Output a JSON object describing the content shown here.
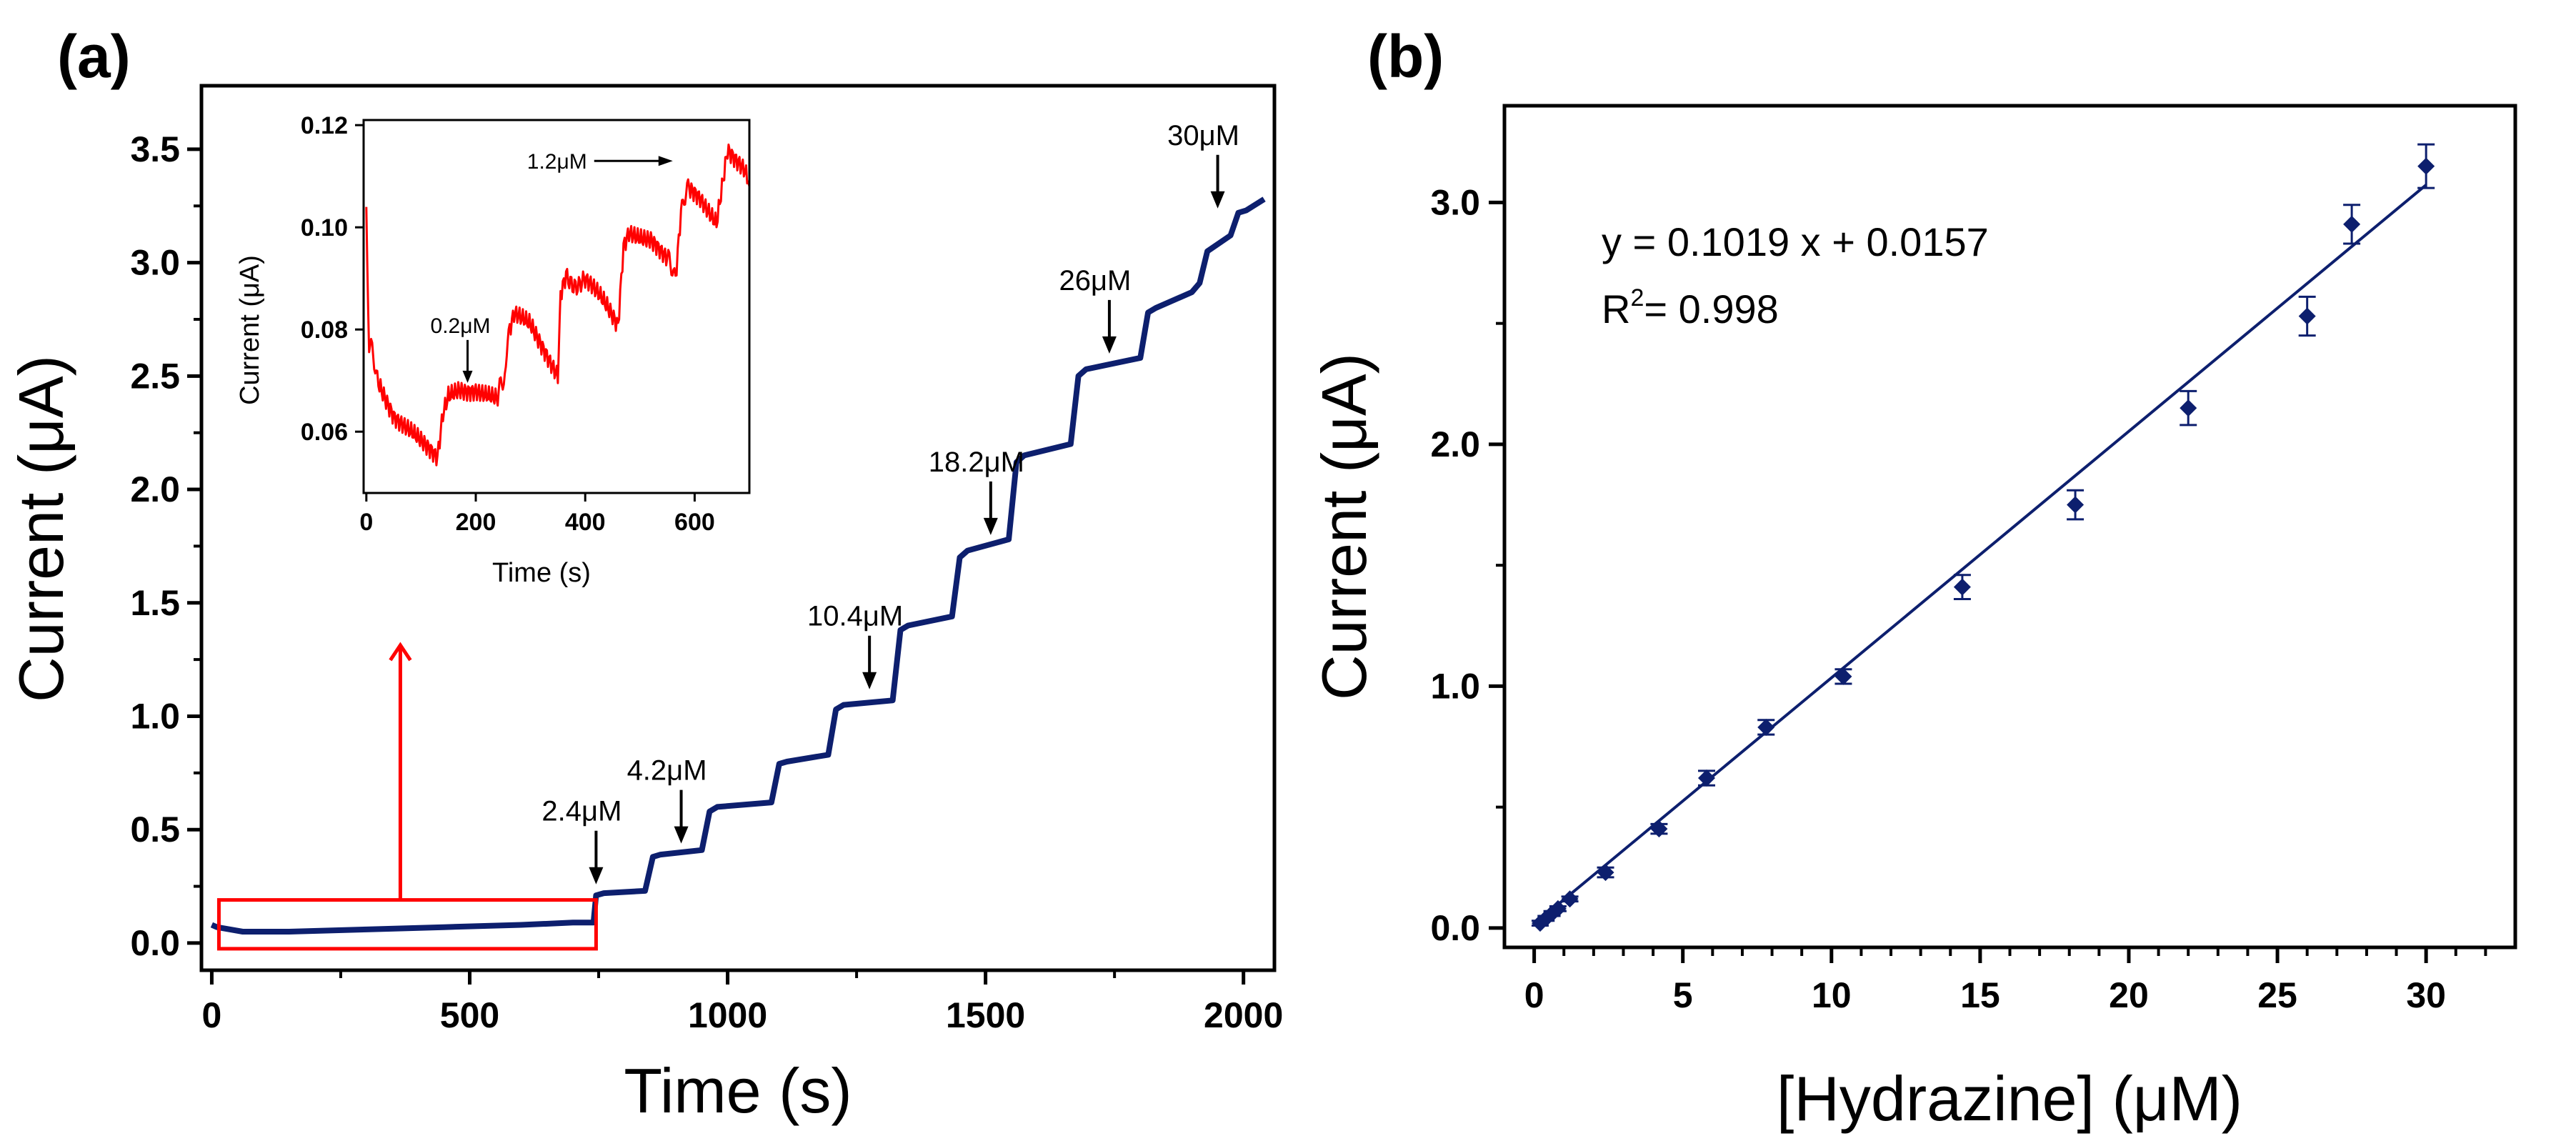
{
  "chart_data": [
    {
      "panel": "(a)",
      "type": "line",
      "xlabel": "Time (s)",
      "ylabel": "Current (μA)",
      "xlim": [
        -20,
        2060
      ],
      "ylim": [
        -0.12,
        3.78
      ],
      "xticks": [
        0,
        500,
        1000,
        1500,
        2000
      ],
      "xtick_labels": [
        "0",
        "500",
        "1000",
        "1500",
        "2000"
      ],
      "yticks": [
        0.0,
        0.5,
        1.0,
        1.5,
        2.0,
        2.5,
        3.0,
        3.5
      ],
      "ytick_labels": [
        "0.0",
        "0.5",
        "1.0",
        "1.5",
        "2.0",
        "2.5",
        "3.0",
        "3.5"
      ],
      "series": [
        {
          "color": "#0d1f6e",
          "x": [
            0,
            10,
            60,
            150,
            300,
            450,
            600,
            700,
            740,
            745,
            760,
            840,
            855,
            870,
            950,
            965,
            980,
            1085,
            1100,
            1115,
            1195,
            1210,
            1225,
            1320,
            1335,
            1350,
            1435,
            1450,
            1465,
            1545,
            1560,
            1575,
            1665,
            1680,
            1695,
            1800,
            1815,
            1830,
            1900,
            1915,
            1930,
            1975,
            1990,
            2005,
            2040
          ],
          "y": [
            0.08,
            0.07,
            0.05,
            0.05,
            0.06,
            0.07,
            0.08,
            0.09,
            0.09,
            0.21,
            0.22,
            0.23,
            0.38,
            0.39,
            0.41,
            0.58,
            0.6,
            0.62,
            0.79,
            0.8,
            0.83,
            1.03,
            1.05,
            1.07,
            1.38,
            1.4,
            1.44,
            1.7,
            1.73,
            1.78,
            2.12,
            2.15,
            2.2,
            2.5,
            2.53,
            2.58,
            2.78,
            2.8,
            2.87,
            2.91,
            3.05,
            3.12,
            3.22,
            3.23,
            3.28
          ]
        }
      ],
      "annotations": [
        {
          "text": "2.4μM",
          "x": 745,
          "y": 0.24
        },
        {
          "text": "4.2μM",
          "x": 910,
          "y": 0.42
        },
        {
          "text": "10.4μM",
          "x": 1275,
          "y": 1.1
        },
        {
          "text": "18.2μM",
          "x": 1510,
          "y": 1.78
        },
        {
          "text": "26μM",
          "x": 1740,
          "y": 2.58
        },
        {
          "text": "30μM",
          "x": 1950,
          "y": 3.22
        }
      ],
      "highlight_box": {
        "x0": 0,
        "x1": 745,
        "y0": 0.0,
        "y1": 0.19,
        "color": "#ff0000"
      },
      "inset": {
        "type": "line",
        "xlabel": "Time (s)",
        "ylabel": "Current (μA)",
        "xlim": [
          -5,
          700
        ],
        "ylim": [
          0.048,
          0.121
        ],
        "xticks": [
          0,
          200,
          400,
          600
        ],
        "xtick_labels": [
          "0",
          "200",
          "400",
          "600"
        ],
        "yticks": [
          0.06,
          0.08,
          0.1,
          0.12
        ],
        "ytick_labels": [
          "0.06",
          "0.08",
          "0.10",
          "0.12"
        ],
        "series": [
          {
            "color": "#ff0000",
            "x": [
              0,
              5,
              20,
              50,
              80,
              110,
              130,
              140,
              150,
              170,
              200,
              240,
              255,
              260,
              270,
              300,
              330,
              350,
              355,
              365,
              400,
              440,
              460,
              470,
              480,
              520,
              550,
              565,
              575,
              590,
              610,
              640,
              660,
              690,
              700
            ],
            "y": [
              0.104,
              0.077,
              0.071,
              0.064,
              0.06,
              0.056,
              0.054,
              0.063,
              0.067,
              0.069,
              0.069,
              0.066,
              0.072,
              0.078,
              0.082,
              0.081,
              0.076,
              0.072,
              0.086,
              0.09,
              0.089,
              0.084,
              0.081,
              0.097,
              0.1,
              0.098,
              0.093,
              0.091,
              0.104,
              0.107,
              0.106,
              0.102,
              0.116,
              0.111,
              0.108
            ]
          }
        ],
        "annotations": [
          {
            "text": "0.2μM",
            "x": 185,
            "y": 0.069
          },
          {
            "text": "1.2μM",
            "x": 560,
            "y": 0.113
          }
        ]
      }
    },
    {
      "panel": "(b)",
      "type": "scatter",
      "xlabel": "[Hydrazine] (μM)",
      "ylabel": "Current (μA)",
      "xlim": [
        -1,
        33
      ],
      "ylim": [
        -0.08,
        3.4
      ],
      "xticks": [
        0,
        5,
        10,
        15,
        20,
        25,
        30
      ],
      "xtick_labels": [
        "0",
        "5",
        "10",
        "15",
        "20",
        "25",
        "30"
      ],
      "yticks": [
        0.0,
        1.0,
        2.0,
        3.0
      ],
      "ytick_labels": [
        "0.0",
        "1.0",
        "2.0",
        "3.0"
      ],
      "series": [
        {
          "color": "#0d1f6e",
          "marker": "diamond",
          "x": [
            0.2,
            0.4,
            0.6,
            0.8,
            1.2,
            2.4,
            4.2,
            5.8,
            7.8,
            10.4,
            14.4,
            18.2,
            22.0,
            26.0,
            27.5,
            30.0
          ],
          "y": [
            0.02,
            0.04,
            0.06,
            0.08,
            0.12,
            0.23,
            0.41,
            0.62,
            0.83,
            1.04,
            1.41,
            1.75,
            2.15,
            2.53,
            2.91,
            3.15
          ],
          "err": [
            0.01,
            0.01,
            0.01,
            0.01,
            0.01,
            0.02,
            0.02,
            0.03,
            0.03,
            0.03,
            0.05,
            0.06,
            0.07,
            0.08,
            0.08,
            0.09
          ]
        }
      ],
      "fit": {
        "slope": 0.1019,
        "intercept": 0.0157,
        "x0": 0.2,
        "x1": 30.0
      },
      "equation": "y = 0.1019 x + 0.0157",
      "r2_label": "R",
      "r2_sup": "2",
      "r2_value": "= 0.998"
    }
  ]
}
